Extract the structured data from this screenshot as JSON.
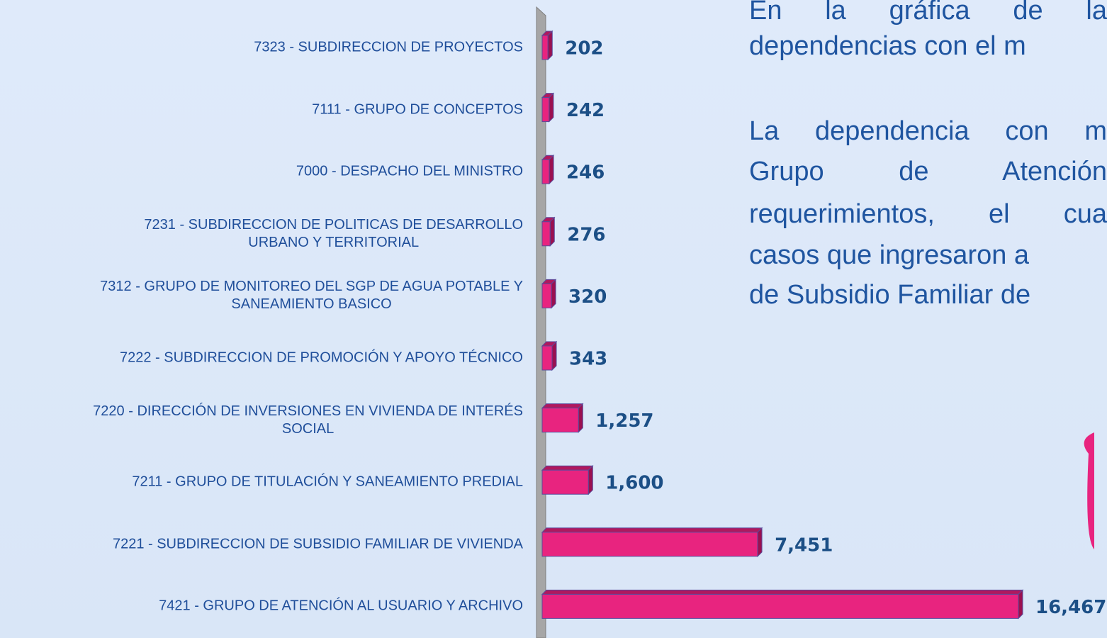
{
  "chart_data": {
    "type": "bar",
    "orientation": "horizontal",
    "color": "#e8247f",
    "categories": [
      "7323 -   SUBDIRECCION DE PROYECTOS",
      "7111 - GRUPO DE CONCEPTOS",
      "7000 - DESPACHO DEL MINISTRO",
      "7231 - SUBDIRECCION DE POLITICAS DE DESARROLLO\nURBANO Y TERRITORIAL",
      "7312 - GRUPO DE MONITOREO DEL SGP DE AGUA POTABLE Y\nSANEAMIENTO BASICO",
      "7222 - SUBDIRECCION DE PROMOCIÓN Y APOYO TÉCNICO",
      "7220 - DIRECCIÓN DE INVERSIONES EN VIVIENDA DE INTERÉS\nSOCIAL",
      "7211 - GRUPO DE TITULACIÓN Y SANEAMIENTO PREDIAL",
      "7221 - SUBDIRECCION DE SUBSIDIO FAMILIAR DE VIVIENDA",
      "7421 - GRUPO DE ATENCIÓN AL USUARIO Y ARCHIVO"
    ],
    "values": [
      202,
      242,
      246,
      276,
      320,
      343,
      1257,
      1600,
      7451,
      16467
    ],
    "value_labels": [
      "202",
      "242",
      "246",
      "276",
      "320",
      "343",
      "1,257",
      "1,600",
      "7,451",
      "16,467"
    ]
  },
  "text": {
    "lines": [
      "En la gráfica de la",
      "dependencias con el m",
      "La dependencia con m",
      "Grupo de Atención",
      "requerimientos, el cua",
      "casos que ingresaron a",
      "de Subsidio Familiar de"
    ]
  }
}
